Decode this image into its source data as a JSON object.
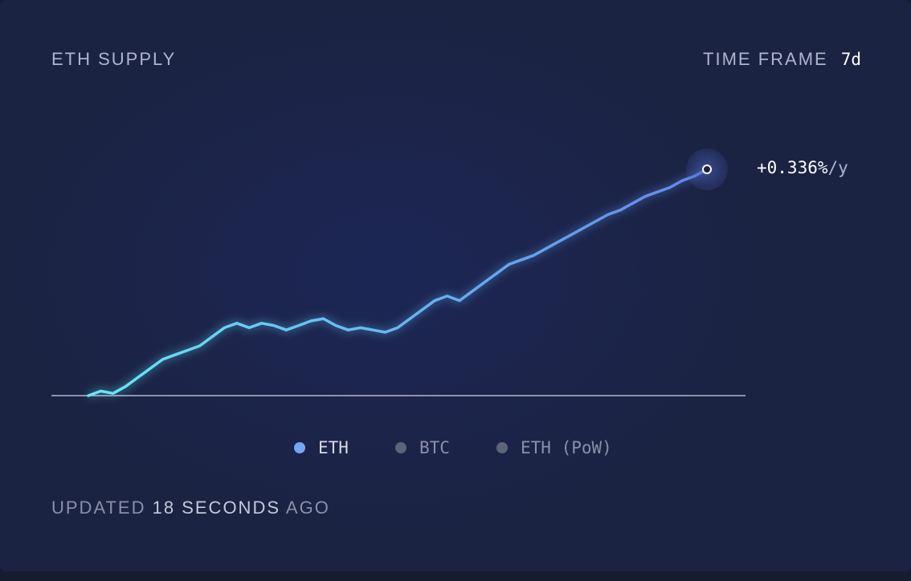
{
  "header": {
    "title": "ETH SUPPLY",
    "timeframe_label": "TIME FRAME",
    "timeframe_value": "7d"
  },
  "last_value": {
    "text": "+0.336%",
    "unit": "/y"
  },
  "legend": {
    "items": [
      {
        "label": "ETH",
        "active": true
      },
      {
        "label": "BTC",
        "active": false
      },
      {
        "label": "ETH (PoW)",
        "active": false
      }
    ]
  },
  "footer": {
    "prefix": "UPDATED",
    "age": "18 SECONDS",
    "suffix": "AGO"
  },
  "colors": {
    "line_start": "#66e7f4",
    "line_end": "#6287ea",
    "baseline": "#b4b8cc",
    "endpoint": "#ffffff"
  },
  "chart_data": {
    "type": "line",
    "title": "ETH SUPPLY",
    "xlabel": "",
    "ylabel": "",
    "grid": false,
    "legend": "bottom-center",
    "x": [
      0,
      2,
      4,
      6,
      8,
      10,
      12,
      14,
      16,
      18,
      20,
      22,
      24,
      26,
      28,
      30,
      32,
      34,
      36,
      38,
      40,
      42,
      44,
      46,
      48,
      50,
      52,
      54,
      56,
      58,
      60,
      62,
      64,
      66,
      68,
      70,
      72,
      74,
      76,
      78,
      80,
      82,
      84,
      86,
      88,
      90,
      92,
      94,
      96,
      98,
      100
    ],
    "xlim": [
      0,
      100
    ],
    "series": [
      {
        "name": "ETH",
        "values": [
          0,
          2,
          1,
          4,
          8,
          12,
          16,
          18,
          20,
          22,
          26,
          30,
          32,
          30,
          32,
          31,
          29,
          31,
          33,
          34,
          31,
          29,
          30,
          29,
          28,
          30,
          34,
          38,
          42,
          44,
          42,
          46,
          50,
          54,
          58,
          60,
          62,
          65,
          68,
          71,
          74,
          77,
          80,
          82,
          85,
          88,
          90,
          92,
          95,
          97,
          100
        ]
      }
    ],
    "ylim": [
      0,
      100
    ]
  }
}
